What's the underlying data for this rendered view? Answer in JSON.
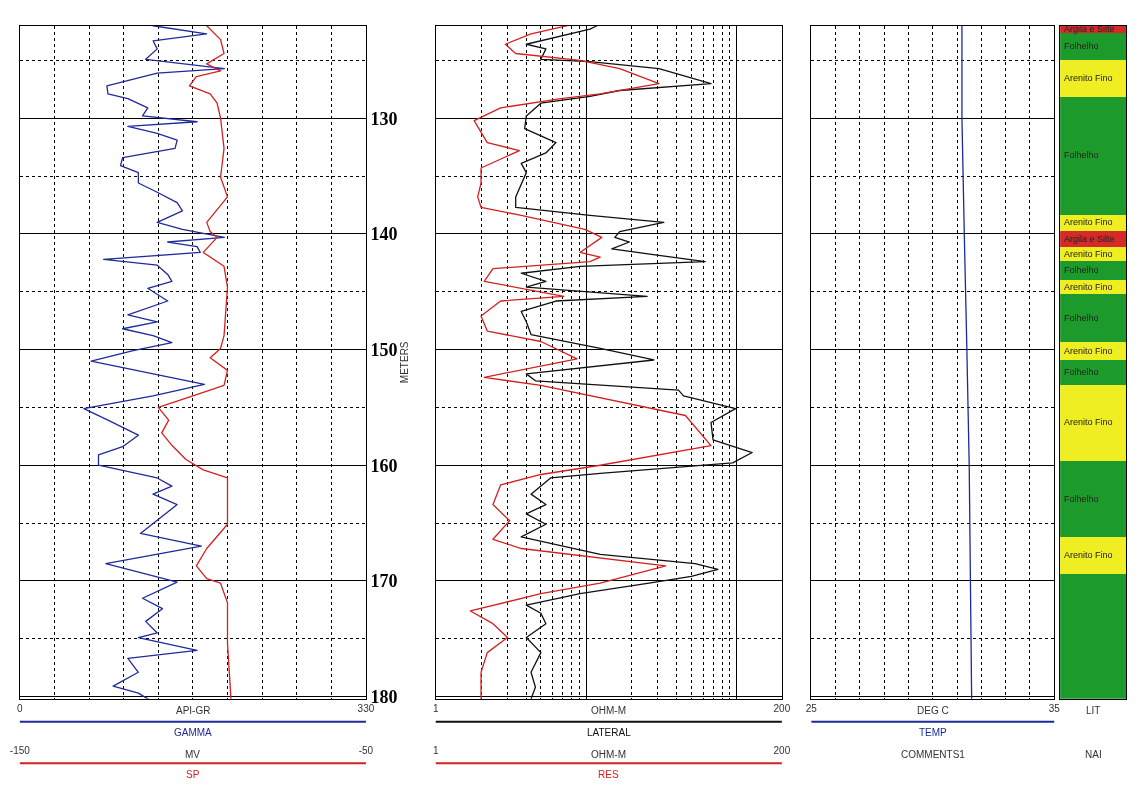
{
  "chart_data": [
    {
      "type": "line",
      "xlim": [
        0,
        330
      ],
      "xticks": [
        0,
        {
          "value": 33,
          "label": null
        },
        {
          "value": 66,
          "label": null
        },
        {
          "value": 99,
          "label": null
        },
        {
          "value": 132,
          "label": null
        },
        {
          "value": 165,
          "label": null
        },
        {
          "value": 198,
          "label": null
        },
        {
          "value": 231,
          "label": null
        },
        {
          "value": 264,
          "label": null
        },
        {
          "value": 297,
          "label": null
        },
        330
      ],
      "xlabel": "API-GR",
      "x2lim": [
        -150,
        -50
      ],
      "x2ticks": [
        -150,
        -50
      ],
      "x2label": "MV",
      "ylabel": "METERS",
      "ylim": [
        180.2,
        122
      ],
      "yticks": [
        {
          "value": 125,
          "label": null
        },
        130,
        {
          "value": 135,
          "label": null
        },
        140,
        {
          "value": 145,
          "label": null
        },
        150,
        {
          "value": 155,
          "label": null
        },
        160,
        {
          "value": 165,
          "label": null
        },
        170,
        {
          "value": 175,
          "label": null
        },
        180
      ],
      "grid": true,
      "series": [
        {
          "name": "GAMMA",
          "color": "#1f2a9c",
          "x": [
            127,
            178,
            127,
            131,
            120,
            195,
            131,
            83,
            84,
            103,
            122,
            117,
            169,
            103,
            131,
            150,
            148,
            98,
            96,
            113,
            113,
            131,
            150,
            155,
            131,
            155,
            195,
            141,
            169,
            172,
            80,
            131,
            141,
            145,
            122,
            141,
            103,
            131,
            98,
            127,
            145,
            108,
            68,
            176,
            127,
            61,
            84,
            113,
            98,
            75,
            75,
            131,
            145,
            127,
            150,
            115,
            173,
            82,
            150,
            117,
            136,
            120,
            131,
            113,
            169,
            103,
            113,
            89,
            113,
            122
          ],
          "values": [
            122.0,
            122.7,
            123.3,
            124.0,
            124.9,
            125.7,
            126.1,
            127.2,
            127.9,
            128.3,
            129.1,
            129.8,
            130.3,
            130.7,
            131.3,
            131.9,
            132.6,
            133.4,
            134.1,
            134.7,
            135.6,
            136.4,
            137.3,
            138.0,
            139.0,
            139.6,
            140.3,
            140.7,
            141.1,
            141.6,
            142.2,
            142.7,
            143.5,
            144.1,
            144.7,
            145.8,
            147.0,
            147.6,
            148.2,
            148.8,
            149.4,
            150.1,
            151.0,
            153.0,
            154.0,
            155.1,
            156.1,
            157.4,
            158.4,
            159.1,
            160.0,
            161.1,
            161.8,
            162.5,
            163.4,
            165.9,
            167.0,
            168.5,
            170.1,
            171.5,
            172.4,
            173.5,
            174.5,
            174.9,
            176.0,
            176.7,
            177.9,
            179.1,
            179.7,
            180.2
          ]
        },
        {
          "name": "SP",
          "color": "#d42020",
          "axis": "x2",
          "x": [
            -96,
            -92,
            -91,
            -96,
            -92,
            -99,
            -101,
            -95,
            -93,
            -92,
            -91,
            -92,
            -90,
            -96,
            -95,
            -93,
            -97,
            -91,
            -90,
            -91,
            -92,
            -95,
            -90,
            -91,
            -100,
            -110,
            -107,
            -109,
            -106,
            -102,
            -97,
            -90,
            -90,
            -96,
            -99,
            -96,
            -92,
            -90,
            -90,
            -89
          ],
          "values": [
            122.0,
            123.2,
            124.4,
            125.3,
            125.9,
            126.4,
            127.2,
            127.9,
            128.7,
            130.0,
            132.6,
            135.1,
            136.8,
            139.0,
            139.8,
            140.3,
            141.6,
            142.8,
            144.6,
            148.8,
            149.9,
            150.7,
            151.8,
            153.1,
            154.0,
            155.0,
            156.1,
            157.2,
            158.3,
            159.5,
            160.4,
            161.1,
            165.1,
            167.2,
            168.7,
            169.8,
            170.2,
            171.9,
            175.4,
            180.2
          ]
        }
      ]
    },
    {
      "type": "line",
      "log": "x",
      "xlim": [
        1,
        200
      ],
      "xticks": [
        1,
        {
          "value": 2,
          "label": null
        },
        {
          "value": 3,
          "label": null
        },
        {
          "value": 4,
          "label": null
        },
        {
          "value": 5,
          "label": null
        },
        {
          "value": 6,
          "label": null
        },
        {
          "value": 7,
          "label": null
        },
        {
          "value": 8,
          "label": null
        },
        {
          "value": 9,
          "label": null
        },
        {
          "value": 10,
          "label": null
        },
        {
          "value": 20,
          "label": null
        },
        {
          "value": 30,
          "label": null
        },
        {
          "value": 40,
          "label": null
        },
        {
          "value": 50,
          "label": null
        },
        {
          "value": 60,
          "label": null
        },
        {
          "value": 70,
          "label": null
        },
        {
          "value": 80,
          "label": null
        },
        {
          "value": 90,
          "label": null
        },
        {
          "value": 100,
          "label": null
        },
        200
      ],
      "xlabel": "OHM-M",
      "x2lim": [
        1,
        200
      ],
      "x2ticks": [
        1,
        200
      ],
      "x2label": "OHM-M",
      "ylim": [
        180.2,
        122
      ],
      "yticks": [
        {
          "value": 125,
          "label": null
        },
        130,
        {
          "value": 135,
          "label": null
        },
        140,
        {
          "value": 145,
          "label": null
        },
        150,
        {
          "value": 155,
          "label": null
        },
        160,
        {
          "value": 165,
          "label": null
        },
        170,
        {
          "value": 175,
          "label": null
        },
        180
      ],
      "grid": true,
      "tick_labels": "x",
      "series": [
        {
          "name": "LATERAL",
          "color": "#111111",
          "x": [
            11.8,
            10.6,
            4.0,
            5.4,
            5.0,
            10.6,
            30.5,
            67.6,
            16.7,
            10.6,
            5.0,
            4.0,
            3.9,
            6.3,
            5.4,
            3.7,
            4.0,
            3.4,
            3.4,
            10.6,
            32.8,
            16.7,
            15.5,
            19.4,
            14.8,
            61.8,
            9.1,
            3.7,
            5.4,
            4.0,
            25.4,
            6.3,
            3.7,
            4.0,
            4.3,
            12.4,
            28.2,
            4.0,
            4.6,
            41.1,
            44.4,
            98.5,
            67.6,
            69.7,
            127,
            94.2,
            12.4,
            5.8,
            4.3,
            5.4,
            4.0,
            5.4,
            3.7,
            12.4,
            53,
            75.2,
            50,
            26.2,
            9.1,
            4.0,
            5.0,
            5.4,
            4.0,
            5.0,
            4.3,
            4.6,
            4.3
          ],
          "values": [
            122.0,
            122.3,
            123.6,
            124.0,
            124.9,
            125.1,
            125.7,
            127.0,
            127.6,
            128.1,
            128.7,
            129.8,
            130.9,
            132.1,
            133.0,
            133.9,
            134.7,
            136.8,
            137.7,
            138.4,
            139.0,
            139.8,
            140.3,
            140.7,
            141.3,
            142.4,
            142.8,
            143.4,
            144.1,
            144.6,
            145.4,
            145.8,
            146.7,
            147.6,
            148.7,
            149.9,
            150.9,
            152.1,
            152.7,
            153.5,
            154.0,
            155.1,
            156.3,
            157.8,
            158.9,
            159.8,
            160.7,
            161.1,
            162.5,
            163.4,
            164.2,
            165.1,
            166.2,
            167.7,
            168.5,
            169.0,
            169.6,
            170.2,
            171.1,
            172.1,
            172.8,
            173.7,
            174.9,
            176.2,
            177.9,
            179.2,
            180.2
          ]
        },
        {
          "name": "RES",
          "color": "#d42020",
          "x": [
            7.5,
            4.3,
            2.9,
            3.4,
            9.1,
            16.7,
            30.5,
            12.4,
            6.8,
            2.7,
            1.8,
            2.2,
            3.6,
            2.0,
            2.0,
            1.9,
            2.0,
            3.7,
            9.8,
            12.7,
            9.1,
            12.4,
            10.6,
            2.4,
            2.1,
            7.1,
            2.7,
            2.0,
            2.2,
            5.0,
            8.7,
            2.1,
            5.0,
            45.7,
            67.6,
            12.4,
            5.0,
            2.7,
            2.4,
            3.1,
            2.4,
            3.7,
            33.8,
            12.4,
            5.0,
            1.7,
            2.4,
            3.0,
            2.2,
            2.0,
            2.0
          ],
          "values": [
            122.0,
            122.7,
            123.6,
            124.4,
            125.0,
            125.7,
            127.0,
            127.9,
            128.3,
            129.1,
            130.2,
            132.1,
            132.8,
            134.3,
            135.6,
            136.8,
            137.7,
            138.4,
            139.6,
            140.3,
            141.6,
            142.0,
            142.4,
            143.0,
            144.1,
            145.4,
            145.8,
            147.1,
            148.4,
            149.3,
            150.8,
            152.4,
            153.1,
            155.7,
            158.3,
            160.0,
            160.8,
            161.7,
            163.4,
            164.8,
            166.4,
            167.2,
            168.7,
            170.2,
            171.1,
            172.6,
            173.7,
            174.9,
            176.2,
            177.9,
            180.2
          ]
        }
      ]
    },
    {
      "type": "line",
      "xlim": [
        25,
        35
      ],
      "xticks": [
        25,
        {
          "value": 26,
          "label": null
        },
        {
          "value": 27,
          "label": null
        },
        {
          "value": 28,
          "label": null
        },
        {
          "value": 29,
          "label": null
        },
        {
          "value": 30,
          "label": null
        },
        {
          "value": 31,
          "label": null
        },
        {
          "value": 32,
          "label": null
        },
        {
          "value": 33,
          "label": null
        },
        {
          "value": 34,
          "label": null
        },
        35
      ],
      "xlabel": "DEG C",
      "ylim": [
        180.2,
        122
      ],
      "yticks": [
        {
          "value": 125,
          "label": null
        },
        130,
        {
          "value": 135,
          "label": null
        },
        140,
        {
          "value": 145,
          "label": null
        },
        150,
        {
          "value": 155,
          "label": null
        },
        160,
        {
          "value": 165,
          "label": null
        },
        170,
        {
          "value": 175,
          "label": null
        },
        180
      ],
      "grid": true,
      "tick_labels": "x",
      "annotations": [
        "COMMENTS1"
      ],
      "series": [
        {
          "name": "TEMP",
          "color": "#1a2a9a",
          "x": [
            31.2,
            31.2,
            31.3,
            31.4,
            31.5,
            31.6
          ],
          "values": [
            122.0,
            130.0,
            140.3,
            149.7,
            160.0,
            180.2
          ]
        }
      ]
    },
    {
      "type": "bar",
      "categories": [
        null
      ],
      "ylim": [
        180.2,
        122
      ],
      "tick_labels": false,
      "annotations": [
        "LIT",
        "NAI"
      ],
      "series": [
        {
          "name": "Argila e Silte",
          "color": "#d42a2a",
          "base": [
            122.0
          ],
          "values": [
            0.6
          ]
        },
        {
          "name": "Folhelho",
          "color": "#1c9a2c",
          "base": [
            122.6
          ],
          "values": [
            2.3
          ]
        },
        {
          "name": "Arenito Fino",
          "color": "#eeee22",
          "base": [
            124.9
          ],
          "values": [
            3.2
          ]
        },
        {
          "name": "Folhelho",
          "color": "#1c9a2c",
          "base": [
            128.1
          ],
          "values": [
            10.2
          ]
        },
        {
          "name": "Arenito Fino",
          "color": "#eeee22",
          "base": [
            138.3
          ],
          "values": [
            1.4
          ]
        },
        {
          "name": "Argila e Silte",
          "color": "#d42a2a",
          "base": [
            139.7
          ],
          "values": [
            1.4
          ]
        },
        {
          "name": "Arenito Fino",
          "color": "#eeee22",
          "base": [
            141.1
          ],
          "values": [
            1.2
          ]
        },
        {
          "name": "Folhelho",
          "color": "#1c9a2c",
          "base": [
            142.3
          ],
          "values": [
            1.7
          ]
        },
        {
          "name": "Arenito Fino",
          "color": "#eeee22",
          "base": [
            144.0
          ],
          "values": [
            1.2
          ]
        },
        {
          "name": "Folhelho",
          "color": "#1c9a2c",
          "base": [
            145.2
          ],
          "values": [
            4.1
          ]
        },
        {
          "name": "Arenito Fino",
          "color": "#eeee22",
          "base": [
            149.3
          ],
          "values": [
            1.6
          ]
        },
        {
          "name": "Folhelho",
          "color": "#1c9a2c",
          "base": [
            150.9
          ],
          "values": [
            2.1
          ]
        },
        {
          "name": "Arenito Fino",
          "color": "#eeee22",
          "base": [
            153.0
          ],
          "values": [
            6.6
          ]
        },
        {
          "name": "Folhelho",
          "color": "#1c9a2c",
          "base": [
            159.6
          ],
          "values": [
            6.6
          ]
        },
        {
          "name": "Arenito Fino",
          "color": "#eeee22",
          "base": [
            166.2
          ],
          "values": [
            3.2
          ]
        },
        {
          "color": "#1c9a2c",
          "base": [
            169.4
          ],
          "values": [
            10.8
          ]
        }
      ]
    }
  ]
}
